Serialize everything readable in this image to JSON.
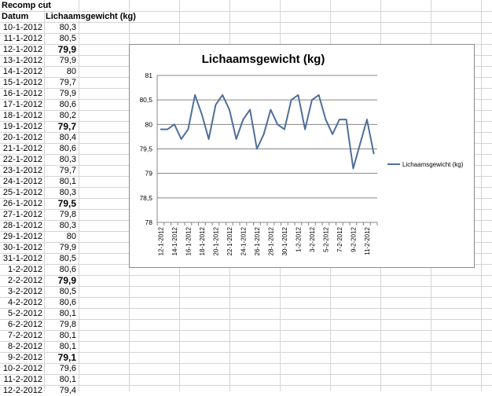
{
  "sheet": {
    "title": "Recomp cut",
    "header_date": "Datum",
    "header_weight": "Lichaamsgewicht (kg)",
    "rows": [
      {
        "date": "10-1-2012",
        "value": "80,3",
        "bold": false
      },
      {
        "date": "11-1-2012",
        "value": "80,5",
        "bold": false
      },
      {
        "date": "12-1-2012",
        "value": "79,9",
        "bold": true
      },
      {
        "date": "13-1-2012",
        "value": "79,9",
        "bold": false
      },
      {
        "date": "14-1-2012",
        "value": "80",
        "bold": false
      },
      {
        "date": "15-1-2012",
        "value": "79,7",
        "bold": false
      },
      {
        "date": "16-1-2012",
        "value": "79,9",
        "bold": false
      },
      {
        "date": "17-1-2012",
        "value": "80,6",
        "bold": false
      },
      {
        "date": "18-1-2012",
        "value": "80,2",
        "bold": false
      },
      {
        "date": "19-1-2012",
        "value": "79,7",
        "bold": true
      },
      {
        "date": "20-1-2012",
        "value": "80,4",
        "bold": false
      },
      {
        "date": "21-1-2012",
        "value": "80,6",
        "bold": false
      },
      {
        "date": "22-1-2012",
        "value": "80,3",
        "bold": false
      },
      {
        "date": "23-1-2012",
        "value": "79,7",
        "bold": false
      },
      {
        "date": "24-1-2012",
        "value": "80,1",
        "bold": false
      },
      {
        "date": "25-1-2012",
        "value": "80,3",
        "bold": false
      },
      {
        "date": "26-1-2012",
        "value": "79,5",
        "bold": true
      },
      {
        "date": "27-1-2012",
        "value": "79,8",
        "bold": false
      },
      {
        "date": "28-1-2012",
        "value": "80,3",
        "bold": false
      },
      {
        "date": "29-1-2012",
        "value": "80",
        "bold": false
      },
      {
        "date": "30-1-2012",
        "value": "79,9",
        "bold": false
      },
      {
        "date": "31-1-2012",
        "value": "80,5",
        "bold": false
      },
      {
        "date": "1-2-2012",
        "value": "80,6",
        "bold": false
      },
      {
        "date": "2-2-2012",
        "value": "79,9",
        "bold": true
      },
      {
        "date": "3-2-2012",
        "value": "80,5",
        "bold": false
      },
      {
        "date": "4-2-2012",
        "value": "80,6",
        "bold": false
      },
      {
        "date": "5-2-2012",
        "value": "80,1",
        "bold": false
      },
      {
        "date": "6-2-2012",
        "value": "79,8",
        "bold": false
      },
      {
        "date": "7-2-2012",
        "value": "80,1",
        "bold": false
      },
      {
        "date": "8-2-2012",
        "value": "80,1",
        "bold": false
      },
      {
        "date": "9-2-2012",
        "value": "79,1",
        "bold": true
      },
      {
        "date": "10-2-2012",
        "value": "79,6",
        "bold": false
      },
      {
        "date": "11-2-2012",
        "value": "80,1",
        "bold": false
      },
      {
        "date": "12-2-2012",
        "value": "79,4",
        "bold": false
      }
    ]
  },
  "colors": {
    "gridline": "#d4d4d4",
    "line": "#4f6f99",
    "axis": "#868686"
  },
  "chart_data": {
    "type": "line",
    "title": "Lichaamsgewicht (kg)",
    "xlabel": "",
    "ylabel": "",
    "ylim": [
      78,
      81
    ],
    "y_ticks": [
      "81",
      "80,5",
      "80",
      "79,5",
      "79",
      "78,5",
      "78"
    ],
    "y_tick_values": [
      81,
      80.5,
      80,
      79.5,
      79,
      78.5,
      78
    ],
    "grid": true,
    "legend_position": "right",
    "x_tick_labels": [
      "12-1-2012",
      "14-1-2012",
      "16-1-2012",
      "18-1-2012",
      "20-1-2012",
      "22-1-2012",
      "24-1-2012",
      "26-1-2012",
      "28-1-2012",
      "30-1-2012",
      "1-2-2012",
      "3-2-2012",
      "5-2-2012",
      "7-2-2012",
      "9-2-2012",
      "11-2-2012"
    ],
    "x": [
      "12-1-2012",
      "13-1-2012",
      "14-1-2012",
      "15-1-2012",
      "16-1-2012",
      "17-1-2012",
      "18-1-2012",
      "19-1-2012",
      "20-1-2012",
      "21-1-2012",
      "22-1-2012",
      "23-1-2012",
      "24-1-2012",
      "25-1-2012",
      "26-1-2012",
      "27-1-2012",
      "28-1-2012",
      "29-1-2012",
      "30-1-2012",
      "31-1-2012",
      "1-2-2012",
      "2-2-2012",
      "3-2-2012",
      "4-2-2012",
      "5-2-2012",
      "6-2-2012",
      "7-2-2012",
      "8-2-2012",
      "9-2-2012",
      "10-2-2012",
      "11-2-2012",
      "12-2-2012"
    ],
    "series": [
      {
        "name": "Lichaamsgewicht (kg)",
        "values": [
          79.9,
          79.9,
          80.0,
          79.7,
          79.9,
          80.6,
          80.2,
          79.7,
          80.4,
          80.6,
          80.3,
          79.7,
          80.1,
          80.3,
          79.5,
          79.8,
          80.3,
          80.0,
          79.9,
          80.5,
          80.6,
          79.9,
          80.5,
          80.6,
          80.1,
          79.8,
          80.1,
          80.1,
          79.1,
          79.6,
          80.1,
          79.4
        ]
      }
    ]
  }
}
